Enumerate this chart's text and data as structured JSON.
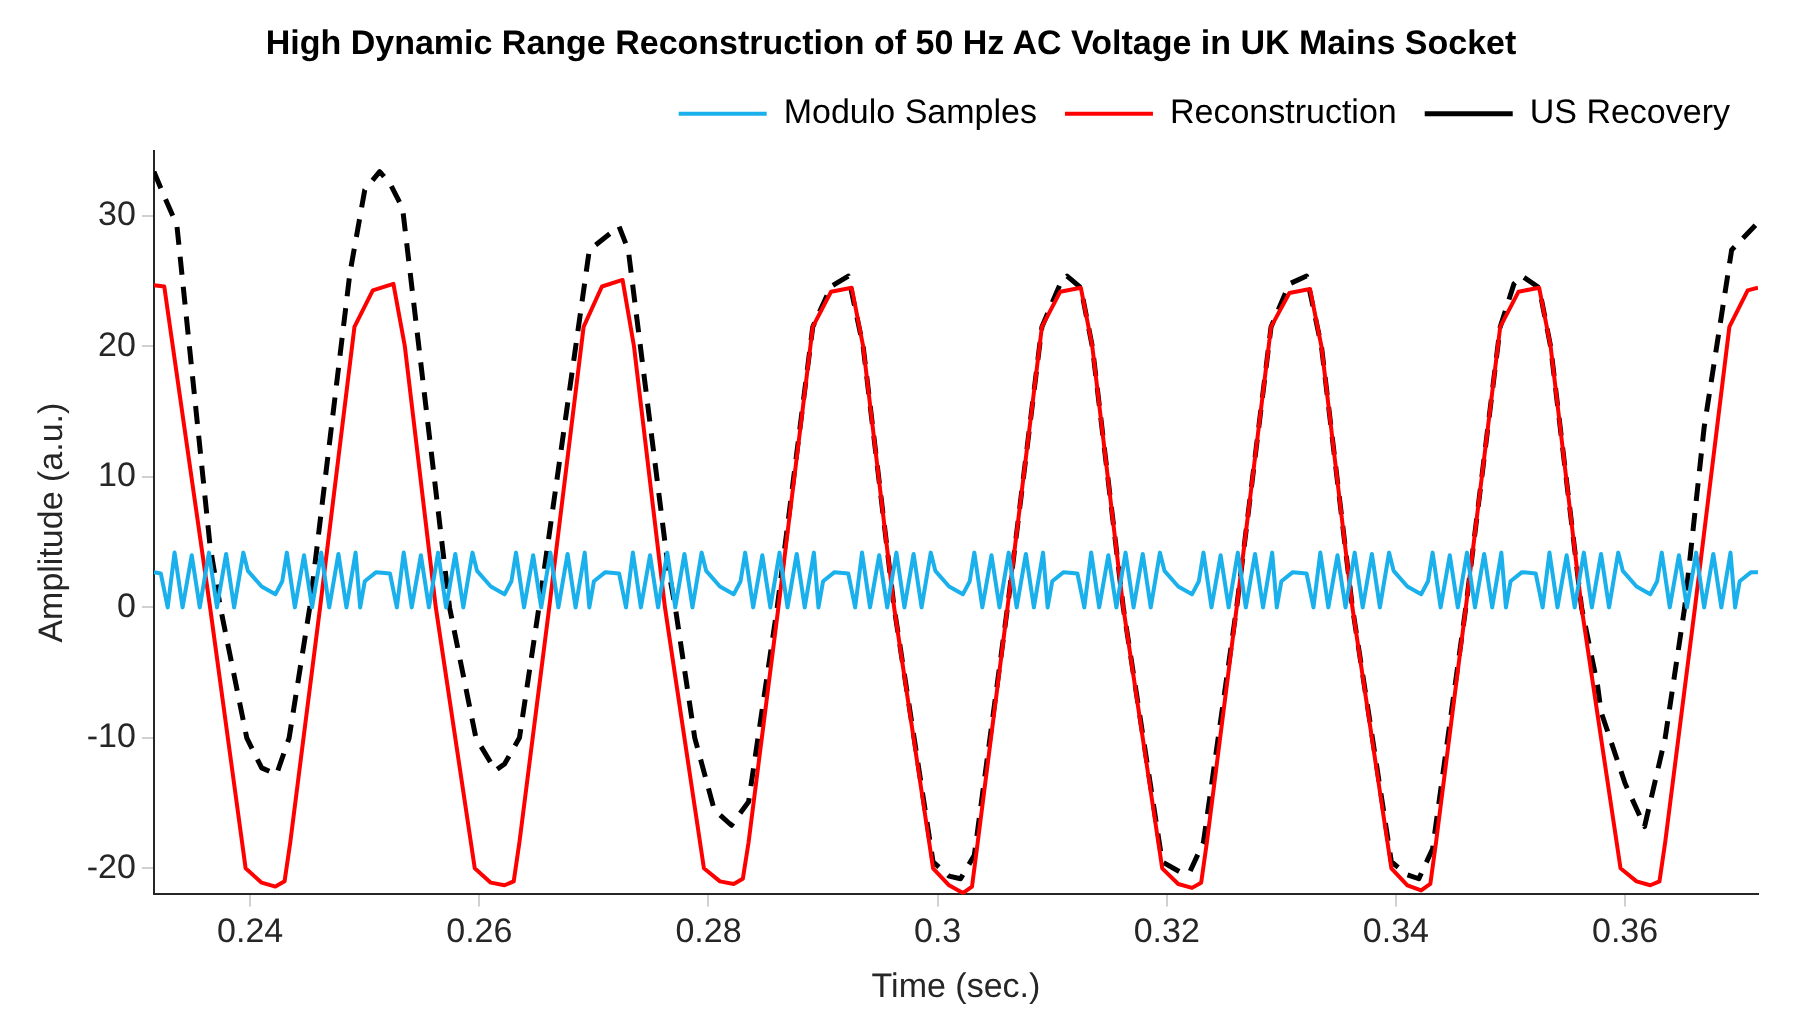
{
  "chart_data": {
    "type": "line",
    "title": "High Dynamic Range Reconstruction of 50 Hz AC Voltage in UK Mains Socket",
    "xlabel": "Time (sec.)",
    "ylabel": "Amplitude (a.u.)",
    "xlim": [
      0.2316,
      0.3716
    ],
    "xticks": [
      0.24,
      0.26,
      0.28,
      0.3,
      0.32,
      0.34,
      0.36
    ],
    "ylim": [
      -22,
      35
    ],
    "yticks": [
      -20,
      -10,
      0,
      10,
      20,
      30
    ],
    "grid": false,
    "legend": "top",
    "marker": "none",
    "series": [
      {
        "name": "Modulo Samples",
        "color": "#1ab0ec",
        "line_style": "solid",
        "x": [
          0.2316,
          0.2322,
          0.2328,
          0.2334,
          0.2341,
          0.2349,
          0.2356,
          0.2364,
          0.2371,
          0.2379,
          0.2386,
          0.2394,
          0.2398,
          0.241,
          0.2422,
          0.2428,
          0.2432,
          0.2439,
          0.2447,
          0.2454,
          0.2462,
          0.2469,
          0.2477,
          0.2484,
          0.2492,
          0.2496,
          0.25,
          0.251,
          0.2522,
          0.2528,
          0.2534,
          0.2541,
          0.2549,
          0.2556,
          0.2564,
          0.2571,
          0.2579,
          0.2586,
          0.2594,
          0.2598,
          0.261,
          0.2622,
          0.2628,
          0.2632,
          0.2639,
          0.2647,
          0.2654,
          0.2662,
          0.2669,
          0.2677,
          0.2684,
          0.2692,
          0.2696,
          0.27,
          0.271,
          0.2722,
          0.2728,
          0.2734,
          0.2741,
          0.2749,
          0.2756,
          0.2764,
          0.2771,
          0.2779,
          0.2786,
          0.2794,
          0.2798,
          0.281,
          0.2822,
          0.2828,
          0.2832,
          0.2839,
          0.2847,
          0.2854,
          0.2862,
          0.2869,
          0.2877,
          0.2884,
          0.2892,
          0.2896,
          0.29,
          0.291,
          0.2922,
          0.2928,
          0.2934,
          0.2941,
          0.2949,
          0.2956,
          0.2964,
          0.2971,
          0.2979,
          0.2986,
          0.2994,
          0.2998,
          0.301,
          0.3022,
          0.3028,
          0.3032,
          0.3039,
          0.3047,
          0.3054,
          0.3062,
          0.3069,
          0.3077,
          0.3084,
          0.3092,
          0.3096,
          0.31,
          0.311,
          0.3122,
          0.3128,
          0.3134,
          0.3141,
          0.3149,
          0.3156,
          0.3164,
          0.3171,
          0.3179,
          0.3186,
          0.3194,
          0.3198,
          0.321,
          0.3222,
          0.3228,
          0.3232,
          0.3239,
          0.3247,
          0.3254,
          0.3262,
          0.3269,
          0.3277,
          0.3284,
          0.3292,
          0.3296,
          0.33,
          0.331,
          0.3322,
          0.3328,
          0.3334,
          0.3341,
          0.3349,
          0.3356,
          0.3364,
          0.3371,
          0.3379,
          0.3386,
          0.3394,
          0.3398,
          0.341,
          0.3422,
          0.3428,
          0.3432,
          0.3439,
          0.3447,
          0.3454,
          0.3462,
          0.3469,
          0.3477,
          0.3484,
          0.3492,
          0.3496,
          0.35,
          0.351,
          0.3522,
          0.3528,
          0.3534,
          0.3541,
          0.3549,
          0.3556,
          0.3564,
          0.3571,
          0.3579,
          0.3586,
          0.3594,
          0.3598,
          0.361,
          0.3622,
          0.3628,
          0.3632,
          0.3639,
          0.3647,
          0.3654,
          0.3662,
          0.3669,
          0.3677,
          0.3684,
          0.3692,
          0.3696,
          0.37,
          0.371,
          0.3716
        ],
        "values": [
          2.7,
          2.6,
          0,
          4.2,
          0,
          4.0,
          0,
          4.2,
          0,
          4.1,
          0,
          4.2,
          2.8,
          1.6,
          1.0,
          2.0,
          4.2,
          0,
          4.0,
          0,
          4.2,
          0,
          4.1,
          0,
          4.2,
          0,
          2.0,
          2.7,
          2.6,
          0,
          4.2,
          0,
          4.0,
          0,
          4.2,
          0,
          4.1,
          0,
          4.2,
          2.8,
          1.6,
          1.0,
          2.0,
          4.2,
          0,
          4.0,
          0,
          4.2,
          0,
          4.1,
          0,
          4.2,
          0,
          2.0,
          2.7,
          2.6,
          0,
          4.2,
          0,
          4.0,
          0,
          4.2,
          0,
          4.1,
          0,
          4.2,
          2.8,
          1.6,
          1.0,
          2.0,
          4.2,
          0,
          4.0,
          0,
          4.2,
          0,
          4.1,
          0,
          4.2,
          0,
          2.0,
          2.7,
          2.6,
          0,
          4.2,
          0,
          4.0,
          0,
          4.2,
          0,
          4.1,
          0,
          4.2,
          2.8,
          1.6,
          1.0,
          2.0,
          4.2,
          0,
          4.0,
          0,
          4.2,
          0,
          4.1,
          0,
          4.2,
          0,
          2.0,
          2.7,
          2.6,
          0,
          4.2,
          0,
          4.0,
          0,
          4.2,
          0,
          4.1,
          0,
          4.2,
          2.8,
          1.6,
          1.0,
          2.0,
          4.2,
          0,
          4.0,
          0,
          4.2,
          0,
          4.1,
          0,
          4.2,
          0,
          2.0,
          2.7,
          2.6,
          0,
          4.2,
          0,
          4.0,
          0,
          4.2,
          0,
          4.1,
          0,
          4.2,
          2.8,
          1.6,
          1.0,
          2.0,
          4.2,
          0,
          4.0,
          0,
          4.2,
          0,
          4.1,
          0,
          4.2,
          0,
          2.0,
          2.7,
          2.6,
          0,
          4.2,
          0,
          4.0,
          0,
          4.2,
          0,
          4.1,
          0,
          4.2,
          2.8,
          1.6,
          1.0,
          2.0,
          4.2,
          0,
          4.0,
          0,
          4.2,
          0,
          4.1,
          0,
          4.2,
          0,
          2.0,
          2.7,
          2.7
        ]
      },
      {
        "name": "Reconstruction",
        "color": "#ff0000",
        "line_style": "solid",
        "x": [
          0.2316,
          0.2325,
          0.2365,
          0.2396,
          0.241,
          0.2422,
          0.243,
          0.2435,
          0.2461,
          0.2491,
          0.2507,
          0.2525,
          0.2535,
          0.2562,
          0.2596,
          0.261,
          0.2622,
          0.263,
          0.2635,
          0.2661,
          0.2691,
          0.2707,
          0.2725,
          0.2735,
          0.2762,
          0.2796,
          0.281,
          0.2822,
          0.283,
          0.2835,
          0.2861,
          0.2891,
          0.2907,
          0.2925,
          0.2935,
          0.2962,
          0.2996,
          0.301,
          0.3022,
          0.303,
          0.3035,
          0.3061,
          0.3091,
          0.3107,
          0.3125,
          0.3135,
          0.3162,
          0.3196,
          0.321,
          0.3222,
          0.323,
          0.3235,
          0.3261,
          0.3291,
          0.3307,
          0.3325,
          0.3335,
          0.3362,
          0.3396,
          0.341,
          0.3422,
          0.343,
          0.3435,
          0.3461,
          0.3491,
          0.3507,
          0.3525,
          0.3535,
          0.3562,
          0.3596,
          0.361,
          0.3622,
          0.363,
          0.3635,
          0.3661,
          0.3691,
          0.3707,
          0.3716
        ],
        "values": [
          24.7,
          24.6,
          0,
          -20,
          -21.1,
          -21.4,
          -21.0,
          -18,
          0,
          21.5,
          24.3,
          24.8,
          20,
          0,
          -20,
          -21.1,
          -21.3,
          -21.0,
          -18,
          0,
          21.5,
          24.6,
          25.1,
          20,
          0,
          -20,
          -21.0,
          -21.2,
          -20.8,
          -18,
          0,
          21.5,
          24.2,
          24.5,
          20,
          0,
          -20,
          -21.3,
          -21.9,
          -21.4,
          -18,
          0,
          21.5,
          24.2,
          24.5,
          20,
          0,
          -20,
          -21.2,
          -21.5,
          -21.1,
          -18,
          0,
          21.5,
          24.1,
          24.4,
          20,
          0,
          -20,
          -21.3,
          -21.7,
          -21.2,
          -18,
          0,
          21.5,
          24.2,
          24.5,
          20,
          0,
          -20,
          -21.0,
          -21.3,
          -21.0,
          -18,
          0,
          21.5,
          24.3,
          24.5
        ]
      },
      {
        "name": "US Recovery",
        "color": "#000000",
        "line_style": "dashed",
        "x": [
          0.2316,
          0.2325,
          0.2336,
          0.2365,
          0.2374,
          0.2397,
          0.241,
          0.2423,
          0.2434,
          0.2452,
          0.2487,
          0.25,
          0.2513,
          0.2522,
          0.2533,
          0.2574,
          0.2597,
          0.2614,
          0.2622,
          0.2635,
          0.2652,
          0.2696,
          0.2722,
          0.273,
          0.2765,
          0.2771,
          0.2788,
          0.2805,
          0.282,
          0.2835,
          0.286,
          0.2891,
          0.2907,
          0.2922,
          0.2935,
          0.2962,
          0.2996,
          0.301,
          0.302,
          0.3032,
          0.3061,
          0.3091,
          0.3107,
          0.3113,
          0.3125,
          0.3135,
          0.3162,
          0.3196,
          0.3212,
          0.322,
          0.3232,
          0.3261,
          0.3291,
          0.3307,
          0.3322,
          0.3335,
          0.3362,
          0.3396,
          0.341,
          0.342,
          0.3432,
          0.3461,
          0.3491,
          0.3503,
          0.351,
          0.3525,
          0.3535,
          0.3562,
          0.3576,
          0.3579,
          0.36,
          0.3617,
          0.3635,
          0.3652,
          0.3669,
          0.3693,
          0.3716
        ],
        "values": [
          33.4,
          31.5,
          29.3,
          4.7,
          0,
          -10,
          -12.3,
          -12.8,
          -10,
          0,
          25.6,
          32,
          33.4,
          32.5,
          30.6,
          0,
          -10,
          -12.5,
          -12.0,
          -10,
          0,
          27.4,
          29.2,
          27.4,
          2.9,
          0,
          -10,
          -15.5,
          -16.7,
          -14.9,
          0,
          21.5,
          24.6,
          25.4,
          20,
          0,
          -19.5,
          -20.6,
          -20.8,
          -19,
          0,
          21.5,
          24.8,
          25.4,
          24.5,
          20,
          0,
          -19.5,
          -20.3,
          -20.3,
          -18,
          0,
          21.5,
          24.8,
          25.4,
          20,
          0,
          -19.5,
          -20.5,
          -20.8,
          -18.5,
          0,
          21.5,
          24.8,
          25.4,
          24.5,
          20,
          0,
          -6,
          -8,
          -13.5,
          -16.8,
          -10,
          0,
          13.8,
          27.4,
          29.5
        ]
      }
    ]
  }
}
